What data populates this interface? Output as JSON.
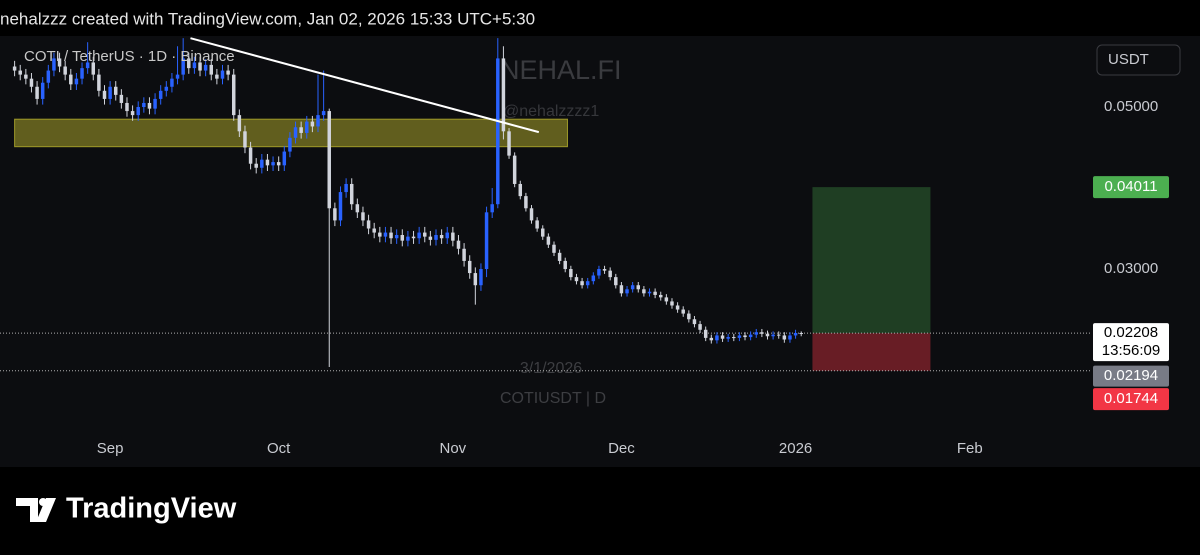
{
  "header": {
    "text": "nehalzzz created with TradingView.com, Jan 02, 2026 15:33 UTC+5:30"
  },
  "chart_data": {
    "type": "candlestick",
    "title": "COTI / TetherUS · 1D · Binance",
    "currency": "USDT",
    "annotations": [
      "NEHAL.FI",
      "@nehalzzzz1",
      "3/1/2026",
      "COTIUSDT | D"
    ],
    "up_color": "#2962ff",
    "down_color": "#d1d4dc",
    "x": [
      -17,
      -16,
      -15,
      -14,
      -13,
      -12,
      -11,
      -10,
      -9,
      -8,
      -7,
      -6,
      -5,
      -4,
      -3,
      -2,
      -1,
      0,
      1,
      2,
      3,
      4,
      5,
      6,
      7,
      8,
      9,
      10,
      11,
      12,
      13,
      14,
      15,
      16,
      17,
      18,
      19,
      20,
      21,
      22,
      23,
      24,
      25,
      26,
      27,
      28,
      29,
      30,
      31,
      32,
      33,
      34,
      35,
      36,
      37,
      38,
      39,
      40,
      41,
      42,
      43,
      44,
      45,
      46,
      47,
      48,
      49,
      50,
      51,
      52,
      53,
      54,
      55,
      56,
      57,
      58,
      59,
      60,
      61,
      62,
      63,
      64,
      65,
      66,
      67,
      68,
      69,
      70,
      71,
      72,
      73,
      74,
      75,
      76,
      77,
      78,
      79,
      80,
      81,
      82,
      83,
      84,
      85,
      86,
      87,
      88,
      89,
      90,
      91,
      92,
      93,
      94,
      95,
      96,
      97,
      98,
      99,
      100,
      101,
      102,
      103,
      104,
      105,
      106,
      107,
      108,
      109,
      110,
      111,
      112,
      113,
      114,
      115,
      116,
      117,
      118,
      119,
      120,
      121,
      122,
      123
    ],
    "open": [
      0.055,
      0.0545,
      0.054,
      0.0535,
      0.0525,
      0.051,
      0.053,
      0.0545,
      0.056,
      0.055,
      0.054,
      0.0528,
      0.0535,
      0.0548,
      0.0555,
      0.054,
      0.052,
      0.051,
      0.0525,
      0.0515,
      0.0505,
      0.0495,
      0.049,
      0.05,
      0.0505,
      0.0498,
      0.051,
      0.052,
      0.0525,
      0.0535,
      0.054,
      0.056,
      0.0548,
      0.0555,
      0.0545,
      0.0552,
      0.054,
      0.0535,
      0.0545,
      0.054,
      0.049,
      0.047,
      0.045,
      0.043,
      0.0425,
      0.0435,
      0.0428,
      0.0432,
      0.0428,
      0.0445,
      0.0462,
      0.0475,
      0.0468,
      0.0482,
      0.0476,
      0.049,
      0.0495,
      0.0375,
      0.036,
      0.0395,
      0.0405,
      0.038,
      0.037,
      0.036,
      0.035,
      0.0345,
      0.034,
      0.0345,
      0.0338,
      0.0342,
      0.0335,
      0.034,
      0.0338,
      0.0345,
      0.034,
      0.0336,
      0.0342,
      0.0338,
      0.0345,
      0.0335,
      0.0325,
      0.031,
      0.0295,
      0.028,
      0.03,
      0.037,
      0.038,
      0.056,
      0.047,
      0.044,
      0.0405,
      0.039,
      0.0375,
      0.036,
      0.035,
      0.034,
      0.033,
      0.032,
      0.031,
      0.03,
      0.029,
      0.0285,
      0.028,
      0.0285,
      0.0292,
      0.03,
      0.0298,
      0.029,
      0.028,
      0.027,
      0.0275,
      0.028,
      0.0275,
      0.027,
      0.0272,
      0.0268,
      0.0265,
      0.026,
      0.0255,
      0.025,
      0.0245,
      0.0238,
      0.0232,
      0.0225,
      0.0215,
      0.0212,
      0.0218,
      0.0214,
      0.0216,
      0.0215,
      0.0218,
      0.0216,
      0.0219,
      0.0222,
      0.022,
      0.0217,
      0.0219,
      0.0218,
      0.0213,
      0.0218,
      0.0221
    ],
    "high": [
      0.0557,
      0.0552,
      0.0547,
      0.0542,
      0.0532,
      0.0537,
      0.0552,
      0.0567,
      0.0567,
      0.0557,
      0.0547,
      0.0542,
      0.0555,
      0.058,
      0.0562,
      0.0547,
      0.0527,
      0.0532,
      0.0532,
      0.0522,
      0.0512,
      0.0502,
      0.0507,
      0.0512,
      0.0512,
      0.0517,
      0.0527,
      0.0532,
      0.0542,
      0.0575,
      0.0585,
      0.0567,
      0.0562,
      0.0562,
      0.0559,
      0.0559,
      0.0547,
      0.0552,
      0.0552,
      0.0547,
      0.0497,
      0.0477,
      0.0457,
      0.0437,
      0.0442,
      0.0442,
      0.0439,
      0.0439,
      0.0452,
      0.0469,
      0.0482,
      0.0482,
      0.0489,
      0.0489,
      0.054,
      0.0545,
      0.0498,
      0.0382,
      0.0402,
      0.0412,
      0.0412,
      0.0387,
      0.0377,
      0.0367,
      0.0357,
      0.0352,
      0.0352,
      0.0352,
      0.0349,
      0.0349,
      0.0347,
      0.0347,
      0.0352,
      0.0352,
      0.0347,
      0.0349,
      0.0349,
      0.0352,
      0.0352,
      0.0342,
      0.0332,
      0.0317,
      0.0302,
      0.0307,
      0.0377,
      0.04,
      0.0585,
      0.0575,
      0.0474,
      0.0444,
      0.0409,
      0.0394,
      0.0379,
      0.0364,
      0.0354,
      0.0344,
      0.0334,
      0.0324,
      0.0314,
      0.0304,
      0.0294,
      0.0289,
      0.0289,
      0.0296,
      0.0304,
      0.0304,
      0.0302,
      0.0294,
      0.0284,
      0.0279,
      0.0284,
      0.0284,
      0.0279,
      0.0276,
      0.0276,
      0.0272,
      0.0269,
      0.0264,
      0.0259,
      0.0254,
      0.0249,
      0.0242,
      0.0236,
      0.0229,
      0.0219,
      0.0222,
      0.0222,
      0.022,
      0.022,
      0.0222,
      0.0222,
      0.0223,
      0.0226,
      0.0226,
      0.0224,
      0.0223,
      0.0223,
      0.0222,
      0.0222,
      0.0225,
      0.0223
    ],
    "low": [
      0.0538,
      0.0533,
      0.0528,
      0.0518,
      0.0503,
      0.0503,
      0.0523,
      0.0538,
      0.0543,
      0.0533,
      0.0521,
      0.0521,
      0.0528,
      0.0541,
      0.0533,
      0.0513,
      0.0503,
      0.0503,
      0.0508,
      0.0498,
      0.0488,
      0.0483,
      0.0483,
      0.0493,
      0.0491,
      0.0491,
      0.0503,
      0.0513,
      0.0518,
      0.0528,
      0.0533,
      0.0541,
      0.0541,
      0.0538,
      0.0538,
      0.0533,
      0.0528,
      0.0528,
      0.0533,
      0.0483,
      0.0463,
      0.0443,
      0.0423,
      0.0418,
      0.0418,
      0.0421,
      0.0421,
      0.0421,
      0.0421,
      0.0438,
      0.0455,
      0.0461,
      0.0461,
      0.0469,
      0.0469,
      0.0483,
      0.0179,
      0.0353,
      0.0353,
      0.0388,
      0.0373,
      0.0363,
      0.0353,
      0.0343,
      0.0338,
      0.0333,
      0.0333,
      0.0331,
      0.0331,
      0.0328,
      0.0328,
      0.0331,
      0.0331,
      0.0333,
      0.0329,
      0.0329,
      0.0331,
      0.0331,
      0.0328,
      0.0318,
      0.0303,
      0.0288,
      0.0256,
      0.0273,
      0.029,
      0.0363,
      0.0375,
      0.046,
      0.0436,
      0.0401,
      0.0386,
      0.0371,
      0.0356,
      0.0346,
      0.0336,
      0.0326,
      0.0316,
      0.0306,
      0.0296,
      0.0286,
      0.0281,
      0.0276,
      0.0276,
      0.0281,
      0.0288,
      0.0294,
      0.0286,
      0.0276,
      0.0266,
      0.0266,
      0.0271,
      0.0271,
      0.0266,
      0.0266,
      0.0264,
      0.0261,
      0.0256,
      0.0251,
      0.0246,
      0.0241,
      0.0234,
      0.0228,
      0.0221,
      0.0211,
      0.0208,
      0.0208,
      0.021,
      0.021,
      0.0211,
      0.0211,
      0.0212,
      0.0212,
      0.0215,
      0.0216,
      0.0213,
      0.0213,
      0.0214,
      0.0209,
      0.0209,
      0.0214,
      0.0217
    ],
    "close": [
      0.0545,
      0.054,
      0.0535,
      0.0525,
      0.051,
      0.053,
      0.0545,
      0.056,
      0.055,
      0.054,
      0.0528,
      0.0535,
      0.0548,
      0.0555,
      0.054,
      0.052,
      0.051,
      0.0525,
      0.0515,
      0.0505,
      0.0495,
      0.049,
      0.05,
      0.0505,
      0.0498,
      0.051,
      0.052,
      0.0525,
      0.0535,
      0.054,
      0.056,
      0.0548,
      0.0555,
      0.0545,
      0.0552,
      0.054,
      0.0535,
      0.0545,
      0.054,
      0.049,
      0.047,
      0.045,
      0.043,
      0.0425,
      0.0435,
      0.0428,
      0.0432,
      0.0428,
      0.0445,
      0.0462,
      0.0475,
      0.0468,
      0.0482,
      0.0476,
      0.049,
      0.0495,
      0.0375,
      0.036,
      0.0395,
      0.0405,
      0.038,
      0.037,
      0.036,
      0.035,
      0.0345,
      0.034,
      0.0345,
      0.0338,
      0.0342,
      0.0335,
      0.034,
      0.0338,
      0.0345,
      0.034,
      0.0336,
      0.0342,
      0.0338,
      0.0345,
      0.0335,
      0.0325,
      0.031,
      0.0295,
      0.028,
      0.03,
      0.037,
      0.038,
      0.056,
      0.047,
      0.044,
      0.0405,
      0.039,
      0.0375,
      0.036,
      0.035,
      0.034,
      0.033,
      0.032,
      0.031,
      0.03,
      0.029,
      0.0285,
      0.028,
      0.0285,
      0.0292,
      0.03,
      0.0298,
      0.029,
      0.028,
      0.027,
      0.0275,
      0.028,
      0.0275,
      0.027,
      0.0272,
      0.0268,
      0.0265,
      0.026,
      0.0255,
      0.025,
      0.0245,
      0.0238,
      0.0232,
      0.0225,
      0.0215,
      0.0212,
      0.0218,
      0.0214,
      0.0216,
      0.0215,
      0.0218,
      0.0216,
      0.0219,
      0.0222,
      0.022,
      0.0217,
      0.0219,
      0.0218,
      0.0213,
      0.0218,
      0.0221,
      0.02208
    ],
    "xlim": [
      -19.6,
      174.4
    ],
    "ylim": [
      0.00556,
      0.05852
    ],
    "xticks": [
      {
        "value": 0,
        "label": "Sep"
      },
      {
        "value": 30,
        "label": "Oct"
      },
      {
        "value": 61,
        "label": "Nov"
      },
      {
        "value": 91,
        "label": "Dec"
      },
      {
        "value": 122,
        "label": "2026"
      },
      {
        "value": 153,
        "label": "Feb"
      }
    ],
    "yticks": [
      {
        "value": 0.05,
        "label": "0.05000"
      },
      {
        "value": 0.03,
        "label": "0.03000"
      }
    ],
    "trendline": {
      "x": [
        14.3,
        76.3
      ],
      "y": [
        0.0585,
        0.0469
      ],
      "color": "#ffffff"
    },
    "zone": {
      "x": [
        -17,
        81.4
      ],
      "y": [
        0.0451,
        0.0485
      ],
      "color": "#c9c230"
    },
    "position": {
      "x": [
        125,
        146
      ],
      "target": 0.04011,
      "entry": 0.02208,
      "stop": 0.01744,
      "profit_color": "#4caf50",
      "loss_color": "#f23645"
    },
    "last_price": 0.02208,
    "countdown": "13:56:09",
    "marker_price": 0.02194
  },
  "footer": {
    "brand": "TradingView"
  }
}
